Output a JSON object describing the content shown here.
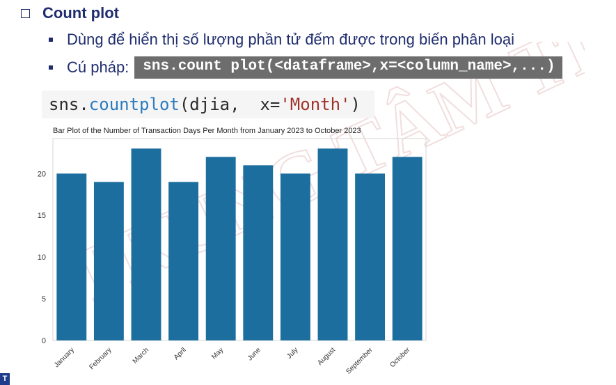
{
  "heading": "Count plot",
  "bullets": {
    "desc": "Dùng để hiển thị số lượng phần tử đếm được trong biến phân loại",
    "syntax_label": "Cú pháp:",
    "syntax_code": "sns.count plot(<dataframe>,x=<column_name>,...)"
  },
  "code": {
    "prefix": "sns.",
    "func": "countplot",
    "args1": "(djia,  x=",
    "str": "'Month'",
    "close": ")"
  },
  "colors": {
    "bar": "#1b6e9e",
    "heading": "#1f2d6e"
  },
  "chart_data": {
    "type": "bar",
    "title": "Bar Plot of the Number of Transaction Days Per Month from January 2023 to October 2023",
    "categories": [
      "January",
      "February",
      "March",
      "April",
      "May",
      "June",
      "July",
      "August",
      "September",
      "October"
    ],
    "values": [
      20,
      19,
      23,
      19,
      22,
      21,
      20,
      23,
      20,
      22
    ],
    "yticks": [
      0,
      5,
      10,
      15,
      20
    ],
    "ylim": [
      0,
      24.2
    ],
    "xlabel": "",
    "ylabel": "",
    "grid": false
  },
  "logo_text": "T"
}
